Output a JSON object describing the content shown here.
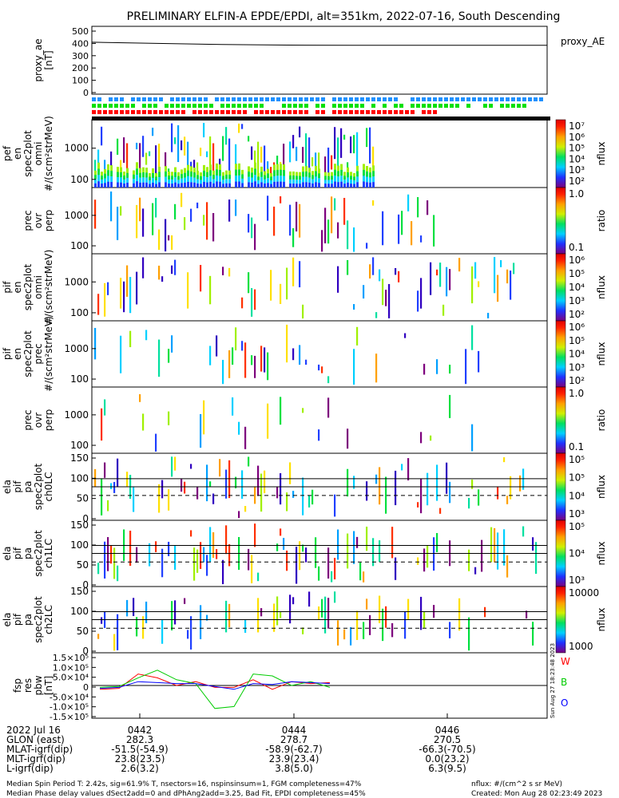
{
  "title": "PRELIMINARY ELFIN-A EPDE/EPDI, alt=351km, 2022-07-16, South Descending",
  "panels": [
    {
      "id": "proxy_ae",
      "ylabel": [
        "proxy_ae",
        "[nT]"
      ],
      "ticks": [
        "500",
        "400",
        "300",
        "200",
        "100",
        "0"
      ],
      "legend": "proxy_AE"
    },
    {
      "id": "spec_en_omni",
      "ylabel": [
        "ela",
        "pef",
        "en",
        "spec2plot",
        "omni",
        "#/(scm²strMeV)"
      ],
      "ticks": [
        "1000",
        "100"
      ],
      "cbar": "nflux",
      "cbar_ticks": [
        "10⁷",
        "10⁶",
        "10⁵",
        "10⁴",
        "10³",
        "10²"
      ]
    },
    {
      "id": "prec_ratio_e",
      "ylabel": [
        "prec",
        "ovr",
        "perp"
      ],
      "ticks": [
        "1000",
        "100"
      ],
      "cbar": "ratio",
      "cbar_ticks": [
        "1.0",
        "0.1"
      ]
    },
    {
      "id": "spec_pif_omni",
      "ylabel": [
        "ela",
        "pif",
        "en",
        "spec2plot",
        "omni",
        "#/(scm²strMeV)"
      ],
      "ticks": [
        "1000",
        "100"
      ],
      "cbar": "nflux",
      "cbar_ticks": [
        "10⁶",
        "10⁵",
        "10⁴",
        "10³",
        "10²"
      ]
    },
    {
      "id": "spec_pif_prec",
      "ylabel": [
        "ela",
        "pif",
        "en",
        "spec2plot",
        "prec",
        "#/(scm²strMeV)"
      ],
      "ticks": [
        "1000",
        "100"
      ],
      "cbar": "nflux",
      "cbar_ticks": [
        "10⁶",
        "10⁵",
        "10⁴",
        "10³",
        "10²"
      ]
    },
    {
      "id": "prec_ratio_i",
      "ylabel": [
        "prec",
        "ovr",
        "perp"
      ],
      "ticks": [
        "1000",
        "100"
      ],
      "cbar": "ratio",
      "cbar_ticks": [
        "1.0",
        "0.1"
      ]
    },
    {
      "id": "pa_ch0",
      "ylabel": [
        "ela",
        "pif",
        "pa",
        "spec2plot",
        "ch0LC"
      ],
      "ticks": [
        "150",
        "100",
        "50",
        "0"
      ],
      "cbar": "nflux",
      "cbar_ticks": [
        "10⁵",
        "10⁵",
        "10⁴",
        "10³"
      ]
    },
    {
      "id": "pa_ch1",
      "ylabel": [
        "ela",
        "pif",
        "pa",
        "spec2plot",
        "ch1LC"
      ],
      "ticks": [
        "150",
        "100",
        "50",
        "0"
      ],
      "cbar": "nflux",
      "cbar_ticks": [
        "10⁵",
        "10⁴",
        "10³"
      ]
    },
    {
      "id": "pa_ch2",
      "ylabel": [
        "ela",
        "pif",
        "pa",
        "spec2plot",
        "ch2LC"
      ],
      "ticks": [
        "150",
        "100",
        "50",
        "0"
      ],
      "cbar": "nflux",
      "cbar_ticks": [
        "10000",
        "1000"
      ]
    },
    {
      "id": "fgm_res",
      "ylabel": [
        "fsp",
        "res",
        "pbw",
        "[nT]"
      ],
      "ticks": [
        "1.5×10⁵",
        "1.0×10⁵",
        "5.0×10⁴",
        "0",
        "-5.0×10⁴",
        "-1.0×10⁵",
        "-1.5×10⁵"
      ],
      "legend": [
        "W",
        "B",
        "O"
      ]
    }
  ],
  "proxy_side_stamp": "Sun Aug 27 18:23:48 2023",
  "orbit": {
    "rows": [
      {
        "label": "2022 Jul 16",
        "values": [
          "0442",
          "0444",
          "0446"
        ]
      },
      {
        "label": "GLON (east)",
        "values": [
          "282.3",
          "278.7",
          "270.5"
        ]
      },
      {
        "label": "MLAT-igrf(dip)",
        "values": [
          "-51.5(-54.9)",
          "-58.9(-62.7)",
          "-66.3(-70.5)"
        ]
      },
      {
        "label": "MLT-igrf(dip)",
        "values": [
          "23.8(23.5)",
          "23.9(23.4)",
          "0.0(23.2)"
        ]
      },
      {
        "label": "L-igrf(dip)",
        "values": [
          "2.6(3.2)",
          "3.8(5.0)",
          "6.3(9.5)"
        ]
      }
    ]
  },
  "footer": {
    "line1": "Median Spin Period T: 2.42s, sig=61.9% T, nsectors=16, nspinsinsum=1, FGM completeness=47%",
    "line2": "Median Phase delay values dSect2add=0 and dPhAng2add=3.25, Bad Fit, EPDI completeness=45%",
    "right1": "nflux: #/(cm^2 s sr MeV)",
    "right2": "Created: Mon Aug 28 02:23:49 2023"
  },
  "chart_data": {
    "type": "heatmap",
    "title": "PRELIMINARY ELFIN-A EPDE/EPDI, alt=351km, 2022-07-16, South Descending",
    "x_ticks": [
      "0442",
      "0444",
      "0446"
    ],
    "proxy_ae": {
      "type": "line",
      "y_range": [
        0,
        500
      ],
      "values": [
        405,
        395,
        385,
        380,
        378,
        378,
        378,
        378
      ]
    },
    "fgm": {
      "type": "line",
      "series": [
        {
          "name": "W",
          "color": "#ff0000",
          "values": [
            -20000,
            -15000,
            60000,
            40000,
            0,
            20000,
            -10000,
            -10000,
            30000,
            -20000,
            20000,
            10000,
            15000
          ]
        },
        {
          "name": "B",
          "color": "#00cc00",
          "values": [
            -10000,
            -5000,
            40000,
            80000,
            30000,
            10000,
            -120000,
            -110000,
            60000,
            50000,
            0,
            20000,
            -10000
          ]
        },
        {
          "name": "O",
          "color": "#0000ff",
          "values": [
            -15000,
            -10000,
            20000,
            15000,
            10000,
            10000,
            -5000,
            -20000,
            10000,
            5000,
            20000,
            15000,
            10000
          ]
        }
      ]
    }
  }
}
